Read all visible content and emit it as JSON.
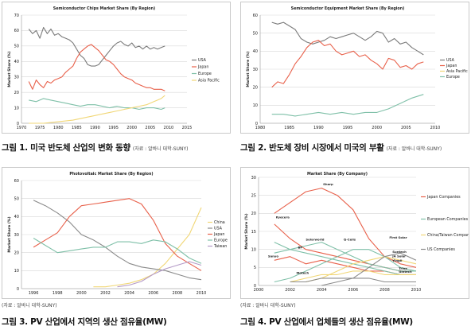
{
  "figures": [
    {
      "caption": "그림 1. 미국 반도체 산업의 변화 동향",
      "source": "(자료 : 알바니 대학-SUNY)",
      "source_position": "after"
    },
    {
      "caption": "그림 2. 반도체 장비 시장에서 미국의 부활",
      "source": "(자료 : 알바니 대학-SUNY)",
      "source_position": "after"
    },
    {
      "caption": "그림 3. PV 산업에서 지역의 생산 점유율(MW)",
      "source": "(자료 : 알바니 대학-SUNY)",
      "source_position": "before"
    },
    {
      "caption": "그림 4. PV 산업에서 업체들의 생산 점유율(MW)",
      "source": "(자료 : 알바니 대학-SUNY)",
      "source_position": "before"
    }
  ],
  "chart_data": [
    {
      "type": "line",
      "title": "Semiconductor Chips Market Share (By Region)",
      "xlabel": "",
      "ylabel": "Market Share (%)",
      "xlim": [
        1970,
        2015
      ],
      "ylim": [
        0,
        70
      ],
      "xticks": [
        1970,
        1975,
        1980,
        1985,
        1990,
        1995,
        2000,
        2005,
        2010,
        2015
      ],
      "yticks": [
        0,
        10,
        20,
        30,
        40,
        50,
        60,
        70
      ],
      "grid": true,
      "legend_position": "right",
      "series": [
        {
          "name": "USA",
          "color": "#7a7a7a",
          "x": [
            1972,
            1973,
            1974,
            1975,
            1976,
            1977,
            1978,
            1979,
            1980,
            1981,
            1982,
            1983,
            1984,
            1985,
            1986,
            1987,
            1988,
            1989,
            1990,
            1991,
            1992,
            1993,
            1994,
            1995,
            1996,
            1997,
            1998,
            1999,
            2000,
            2001,
            2002,
            2003,
            2004,
            2005,
            2006,
            2007,
            2008,
            2009
          ],
          "y": [
            61,
            58,
            60,
            55,
            62,
            58,
            61,
            57,
            58,
            56,
            55,
            54,
            52,
            48,
            44,
            42,
            38,
            37,
            37,
            38,
            41,
            44,
            47,
            50,
            52,
            53,
            51,
            50,
            52,
            49,
            50,
            48,
            50,
            48,
            49,
            48,
            49,
            50
          ]
        },
        {
          "name": "Japan",
          "color": "#e8604a",
          "x": [
            1972,
            1973,
            1974,
            1975,
            1976,
            1977,
            1978,
            1979,
            1980,
            1981,
            1982,
            1983,
            1984,
            1985,
            1986,
            1987,
            1988,
            1989,
            1990,
            1991,
            1992,
            1993,
            1994,
            1995,
            1996,
            1997,
            1998,
            1999,
            2000,
            2001,
            2002,
            2003,
            2004,
            2005,
            2006,
            2007,
            2008,
            2009
          ],
          "y": [
            27,
            22,
            28,
            25,
            23,
            27,
            26,
            28,
            29,
            30,
            33,
            35,
            37,
            42,
            46,
            48,
            50,
            51,
            49,
            47,
            44,
            41,
            40,
            38,
            35,
            32,
            30,
            29,
            28,
            26,
            25,
            24,
            23,
            23,
            22,
            22,
            22,
            21
          ]
        },
        {
          "name": "Europe",
          "color": "#7fc0a8",
          "x": [
            1972,
            1974,
            1976,
            1978,
            1980,
            1982,
            1984,
            1986,
            1988,
            1990,
            1992,
            1994,
            1996,
            1998,
            2000,
            2002,
            2004,
            2006,
            2008,
            2009
          ],
          "y": [
            15,
            14,
            16,
            15,
            14,
            13,
            12,
            11,
            12,
            12,
            11,
            10,
            11,
            10,
            10,
            9,
            10,
            10,
            9,
            10
          ]
        },
        {
          "name": "Asia Pacific",
          "color": "#f1d777",
          "x": [
            1972,
            1976,
            1980,
            1984,
            1988,
            1990,
            1992,
            1994,
            1996,
            1998,
            2000,
            2002,
            2004,
            2005,
            2006,
            2007,
            2008,
            2009
          ],
          "y": [
            0,
            0,
            1,
            2,
            4,
            5,
            6,
            7,
            8,
            9,
            10,
            11,
            12,
            13,
            14,
            15,
            16,
            18
          ]
        }
      ]
    },
    {
      "type": "line",
      "title": "Semiconductor Equipment Market Share (By Region)",
      "xlabel": "",
      "ylabel": "Market Share (%)",
      "xlim": [
        1980,
        2010
      ],
      "ylim": [
        0,
        60
      ],
      "xticks": [
        1980,
        1985,
        1990,
        1995,
        2000,
        2005,
        2010
      ],
      "yticks": [
        0,
        10,
        20,
        30,
        40,
        50,
        60
      ],
      "grid": true,
      "legend_position": "right",
      "series": [
        {
          "name": "USA",
          "color": "#7a7a7a",
          "x": [
            1982,
            1983,
            1984,
            1985,
            1986,
            1987,
            1988,
            1989,
            1990,
            1991,
            1992,
            1993,
            1994,
            1995,
            1996,
            1997,
            1998,
            1999,
            2000,
            2001,
            2002,
            2003,
            2004,
            2005,
            2006,
            2007,
            2008
          ],
          "y": [
            56,
            55,
            56,
            54,
            52,
            47,
            45,
            44,
            45,
            46,
            48,
            47,
            48,
            49,
            50,
            48,
            46,
            48,
            51,
            50,
            45,
            47,
            44,
            45,
            42,
            40,
            38
          ]
        },
        {
          "name": "Japan",
          "color": "#e8604a",
          "x": [
            1982,
            1983,
            1984,
            1985,
            1986,
            1987,
            1988,
            1989,
            1990,
            1991,
            1992,
            1993,
            1994,
            1995,
            1996,
            1997,
            1998,
            1999,
            2000,
            2001,
            2002,
            2003,
            2004,
            2005,
            2006,
            2007,
            2008
          ],
          "y": [
            20,
            23,
            22,
            27,
            33,
            37,
            42,
            45,
            46,
            43,
            44,
            40,
            38,
            39,
            40,
            37,
            38,
            35,
            33,
            30,
            36,
            35,
            31,
            32,
            30,
            33,
            34
          ]
        },
        {
          "name": "Asia Pacific",
          "color": "#f1d777",
          "x": [],
          "y": []
        },
        {
          "name": "Europe",
          "color": "#7fc0a8",
          "x": [
            1982,
            1984,
            1986,
            1988,
            1990,
            1992,
            1994,
            1996,
            1998,
            2000,
            2002,
            2004,
            2006,
            2008
          ],
          "y": [
            5,
            5,
            4,
            5,
            6,
            5,
            6,
            5,
            6,
            6,
            8,
            11,
            14,
            16
          ]
        }
      ]
    },
    {
      "type": "line",
      "title": "Photovoltaic Market Share (By Region)",
      "xlabel": "",
      "ylabel": "Market Share (%)",
      "xlim": [
        1995,
        2010
      ],
      "ylim": [
        0,
        60
      ],
      "xticks": [
        1996,
        1998,
        2000,
        2002,
        2004,
        2006,
        2008,
        2010
      ],
      "yticks": [
        0,
        10,
        20,
        30,
        40,
        50,
        60
      ],
      "grid": true,
      "legend_position": "right",
      "series": [
        {
          "name": "China",
          "color": "#f1d777",
          "x": [
            2001,
            2002,
            2003,
            2004,
            2005,
            2006,
            2007,
            2008,
            2009,
            2010
          ],
          "y": [
            1,
            1,
            2,
            3,
            5,
            8,
            14,
            22,
            30,
            45
          ]
        },
        {
          "name": "USA",
          "color": "#8a8a8a",
          "x": [
            1996,
            1997,
            1998,
            1999,
            2000,
            2001,
            2002,
            2003,
            2004,
            2005,
            2006,
            2007,
            2008,
            2009,
            2010
          ],
          "y": [
            49,
            46,
            42,
            37,
            30,
            27,
            23,
            18,
            14,
            12,
            11,
            10,
            8,
            6,
            5
          ]
        },
        {
          "name": "Japan",
          "color": "#e8604a",
          "x": [
            1996,
            1997,
            1998,
            1999,
            2000,
            2001,
            2002,
            2003,
            2004,
            2005,
            2006,
            2007,
            2008,
            2009,
            2010
          ],
          "y": [
            23,
            27,
            31,
            40,
            46,
            47,
            48,
            49,
            50,
            47,
            38,
            25,
            18,
            14,
            10
          ]
        },
        {
          "name": "Europe",
          "color": "#7fc0a8",
          "x": [
            1996,
            1997,
            1998,
            1999,
            2000,
            2001,
            2002,
            2003,
            2004,
            2005,
            2006,
            2007,
            2008,
            2009,
            2010
          ],
          "y": [
            28,
            24,
            20,
            21,
            22,
            23,
            23,
            26,
            26,
            25,
            27,
            26,
            22,
            17,
            14
          ]
        },
        {
          "name": "Taiwan",
          "color": "#b49ac7",
          "x": [
            2003,
            2004,
            2005,
            2006,
            2007,
            2008,
            2009,
            2010
          ],
          "y": [
            1,
            2,
            4,
            8,
            11,
            13,
            15,
            13
          ]
        }
      ]
    },
    {
      "type": "line",
      "title": "Market Share (By Company)",
      "xlabel": "",
      "ylabel": "Market Share (%)",
      "xlim": [
        2000,
        2010
      ],
      "ylim": [
        0,
        30
      ],
      "xticks": [
        2000,
        2002,
        2004,
        2006,
        2008,
        2010
      ],
      "yticks": [
        0,
        5,
        10,
        15,
        20,
        25,
        30
      ],
      "grid": true,
      "legend_position": "right",
      "legend": [
        "Japan Companies",
        "European Companies",
        "China/Taiwan Companies",
        "US Companies"
      ],
      "legend_colors": [
        "#e8604a",
        "#7fc0a8",
        "#f1d777",
        "#8a8a8a"
      ],
      "annotations": [
        "Sharp",
        "Kyocera",
        "Solarworld",
        "Q-Cells",
        "Sanyo",
        "BP",
        "Motech",
        "First Solar",
        "Suntech",
        "JA Solar",
        "Yingli",
        "Trina",
        "Gintech"
      ],
      "series": [
        {
          "name": "Sharp",
          "color": "#e8604a",
          "x": [
            2001,
            2002,
            2003,
            2004,
            2005,
            2006,
            2007,
            2008,
            2009,
            2010
          ],
          "y": [
            20,
            23,
            26,
            27,
            25,
            21,
            13,
            8,
            6,
            5
          ]
        },
        {
          "name": "Kyocera",
          "color": "#e8604a",
          "x": [
            2001,
            2002,
            2003,
            2004,
            2005,
            2006,
            2007,
            2008,
            2009,
            2010
          ],
          "y": [
            17,
            13,
            10,
            9,
            8,
            7,
            6,
            5,
            4,
            4
          ]
        },
        {
          "name": "Sanyo",
          "color": "#e8604a",
          "x": [
            2001,
            2002,
            2003,
            2004,
            2005,
            2006,
            2007,
            2008,
            2009,
            2010
          ],
          "y": [
            7,
            8,
            6,
            7,
            6,
            5,
            4,
            4,
            3,
            3
          ]
        },
        {
          "name": "Solarworld",
          "color": "#7fc0a8",
          "x": [
            2001,
            2002,
            2003,
            2004,
            2005,
            2006,
            2007,
            2008,
            2009,
            2010
          ],
          "y": [
            9,
            10,
            11,
            12,
            10,
            8,
            6,
            5,
            4,
            4
          ]
        },
        {
          "name": "Q-Cells",
          "color": "#7fc0a8",
          "x": [
            2001,
            2002,
            2003,
            2004,
            2005,
            2006,
            2007,
            2008,
            2009,
            2010
          ],
          "y": [
            1,
            2,
            4,
            6,
            8,
            10,
            10,
            8,
            5,
            4
          ]
        },
        {
          "name": "BP",
          "color": "#7fc0a8",
          "x": [
            2001,
            2002,
            2003,
            2004,
            2005,
            2006,
            2007,
            2008,
            2009,
            2010
          ],
          "y": [
            12,
            10,
            9,
            8,
            7,
            6,
            5,
            4,
            3,
            3
          ]
        },
        {
          "name": "Suntech",
          "color": "#f1d777",
          "x": [
            2003,
            2004,
            2005,
            2006,
            2007,
            2008,
            2009,
            2010
          ],
          "y": [
            1,
            2,
            4,
            6,
            7,
            8,
            7,
            6
          ]
        },
        {
          "name": "Motech",
          "color": "#f1d777",
          "x": [
            2002,
            2003,
            2004,
            2005,
            2006,
            2007,
            2008,
            2009,
            2010
          ],
          "y": [
            1,
            2,
            3,
            3,
            4,
            4,
            3,
            3,
            3
          ]
        },
        {
          "name": "First Solar",
          "color": "#8a8a8a",
          "x": [
            2004,
            2005,
            2006,
            2007,
            2008,
            2009,
            2010
          ],
          "y": [
            0,
            1,
            2,
            5,
            8,
            9,
            7
          ]
        },
        {
          "name": "Evergreen",
          "color": "#8a8a8a",
          "x": [
            2002,
            2003,
            2004,
            2005,
            2006,
            2007,
            2008,
            2009,
            2010
          ],
          "y": [
            1,
            1,
            2,
            2,
            2,
            2,
            1,
            1,
            1
          ]
        }
      ]
    }
  ]
}
